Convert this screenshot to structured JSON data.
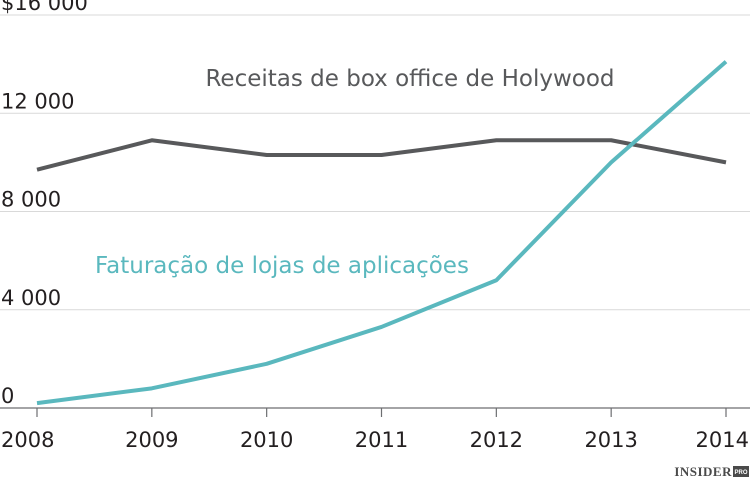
{
  "chart_data": {
    "type": "line",
    "title": "",
    "xlabel": "",
    "ylabel": "",
    "x": [
      "2008",
      "2009",
      "2010",
      "2011",
      "2012",
      "2013",
      "2014"
    ],
    "ylim": [
      0,
      16000
    ],
    "y_ticks": [
      0,
      4000,
      8000,
      12000,
      16000
    ],
    "y_tick_labels": [
      "0",
      "4 000",
      "8 000",
      "12 000",
      "$16 000"
    ],
    "grid": true,
    "series": [
      {
        "name": "Receitas de box office de Holywood",
        "color": "#58595b",
        "values": [
          9700,
          10900,
          10300,
          10300,
          10900,
          10900,
          10000
        ]
      },
      {
        "name": "Faturação de lojas de aplicações",
        "color": "#5ab8be",
        "values": [
          200,
          800,
          1800,
          3300,
          5200,
          10000,
          14100
        ]
      }
    ]
  },
  "brand": {
    "name": "INSIDER",
    "suffix": "PRO"
  }
}
